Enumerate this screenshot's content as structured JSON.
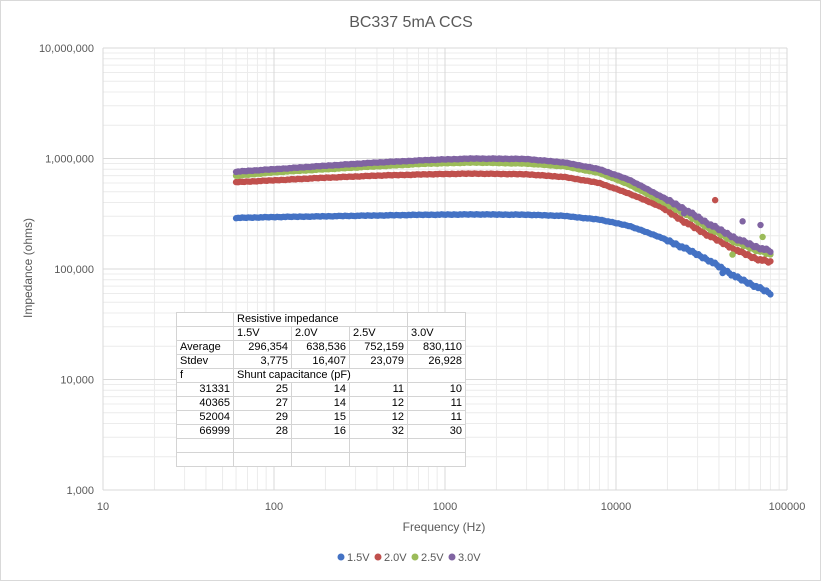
{
  "chart_data": {
    "type": "scatter",
    "title": "BC337 5mA CCS",
    "xlabel": "Frequency (Hz)",
    "ylabel": "Impedance (ohms)",
    "x_scale": "log",
    "y_scale": "log",
    "xlim": [
      10,
      100000
    ],
    "ylim": [
      1000,
      10000000
    ],
    "x_ticks": [
      "10",
      "100",
      "1000",
      "10000",
      "100000"
    ],
    "y_ticks": [
      "1,000",
      "10,000",
      "100,000",
      "1,000,000",
      "10,000,000"
    ],
    "grid": "major and minor",
    "legend_position": "bottom",
    "series": [
      {
        "name": "1.5V",
        "color": "#4472C4",
        "points": [
          [
            60,
            290000
          ],
          [
            100,
            295000
          ],
          [
            200,
            300000
          ],
          [
            400,
            305000
          ],
          [
            800,
            310000
          ],
          [
            1500,
            312000
          ],
          [
            3000,
            310000
          ],
          [
            5000,
            302000
          ],
          [
            8000,
            280000
          ],
          [
            12000,
            245000
          ],
          [
            18000,
            195000
          ],
          [
            25000,
            155000
          ],
          [
            35000,
            120000
          ],
          [
            50000,
            85000
          ],
          [
            65000,
            70000
          ],
          [
            80000,
            60000
          ]
        ]
      },
      {
        "name": "2.0V",
        "color": "#C0504D",
        "points": [
          [
            60,
            610000
          ],
          [
            100,
            635000
          ],
          [
            200,
            670000
          ],
          [
            400,
            700000
          ],
          [
            800,
            720000
          ],
          [
            1500,
            730000
          ],
          [
            3000,
            720000
          ],
          [
            5000,
            680000
          ],
          [
            8000,
            600000
          ],
          [
            12000,
            480000
          ],
          [
            18000,
            370000
          ],
          [
            25000,
            270000
          ],
          [
            35000,
            200000
          ],
          [
            50000,
            150000
          ],
          [
            65000,
            125000
          ],
          [
            80000,
            115000
          ]
        ]
      },
      {
        "name": "2.5V",
        "color": "#9BBB59",
        "points": [
          [
            60,
            700000
          ],
          [
            100,
            750000
          ],
          [
            200,
            800000
          ],
          [
            400,
            850000
          ],
          [
            800,
            900000
          ],
          [
            1500,
            920000
          ],
          [
            3000,
            900000
          ],
          [
            5000,
            850000
          ],
          [
            8000,
            740000
          ],
          [
            12000,
            580000
          ],
          [
            18000,
            420000
          ],
          [
            25000,
            320000
          ],
          [
            35000,
            235000
          ],
          [
            50000,
            175000
          ],
          [
            65000,
            150000
          ],
          [
            80000,
            135000
          ]
        ]
      },
      {
        "name": "3.0V",
        "color": "#8064A2",
        "points": [
          [
            60,
            760000
          ],
          [
            100,
            800000
          ],
          [
            200,
            860000
          ],
          [
            400,
            920000
          ],
          [
            800,
            970000
          ],
          [
            1500,
            1000000
          ],
          [
            3000,
            990000
          ],
          [
            5000,
            920000
          ],
          [
            8000,
            800000
          ],
          [
            12000,
            640000
          ],
          [
            18000,
            460000
          ],
          [
            25000,
            350000
          ],
          [
            35000,
            255000
          ],
          [
            50000,
            190000
          ],
          [
            65000,
            160000
          ],
          [
            80000,
            145000
          ]
        ]
      }
    ],
    "outliers": [
      {
        "series": "2.0V",
        "x": 38000,
        "y": 420000
      },
      {
        "series": "3.0V",
        "x": 25000,
        "y": 320000
      },
      {
        "series": "2.5V",
        "x": 48000,
        "y": 135000
      },
      {
        "series": "3.0V",
        "x": 70000,
        "y": 250000
      },
      {
        "series": "2.5V",
        "x": 72000,
        "y": 195000
      },
      {
        "series": "1.5V",
        "x": 42000,
        "y": 92000
      },
      {
        "series": "3.0V",
        "x": 55000,
        "y": 270000
      }
    ]
  },
  "table": {
    "rows": [
      [
        "",
        "Resistive impedance",
        "",
        "",
        ""
      ],
      [
        "",
        "1.5V",
        "2.0V",
        "2.5V",
        "3.0V"
      ],
      [
        "Average",
        "296,354",
        "638,536",
        "752,159",
        "830,110"
      ],
      [
        "Stdev",
        "3,775",
        "16,407",
        "23,079",
        "26,928"
      ],
      [
        "f",
        "Shunt capacitance (pF)",
        "",
        "",
        ""
      ],
      [
        "31331",
        "25",
        "14",
        "11",
        "10"
      ],
      [
        "40365",
        "27",
        "14",
        "12",
        "11"
      ],
      [
        "52004",
        "29",
        "15",
        "12",
        "11"
      ],
      [
        "66999",
        "28",
        "16",
        "32",
        "30"
      ],
      [
        "",
        "",
        "",
        "",
        ""
      ],
      [
        "",
        "",
        "",
        "",
        ""
      ]
    ]
  }
}
